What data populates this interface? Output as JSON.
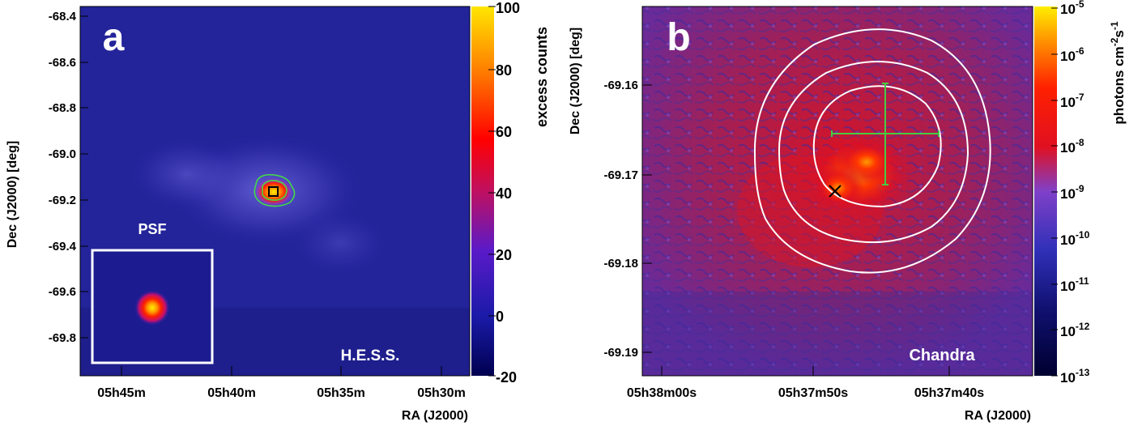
{
  "chart_data": [
    {
      "panel": "a",
      "type": "heatmap",
      "xlabel": "RA (J2000)",
      "ylabel": "Dec (J2000) [deg]",
      "x_ticks": [
        "05h45m",
        "05h40m",
        "05h35m",
        "05h30m"
      ],
      "y_ticks": [
        "-68.4",
        "-68.6",
        "-68.8",
        "-69.0",
        "-69.2",
        "-69.4",
        "-69.6",
        "-69.8"
      ],
      "y_tick_values": [
        -68.4,
        -68.6,
        -68.8,
        -69.0,
        -69.2,
        -69.4,
        -69.6,
        -69.8
      ],
      "colorbar": {
        "label": "excess counts",
        "ticks": [
          "100",
          "80",
          "60",
          "40",
          "20",
          "0",
          "-20"
        ],
        "range": [
          -20,
          100
        ],
        "colormap": "rainbow (navy → purple → red → orange → yellow)"
      },
      "annotations": {
        "panel_letter": "a",
        "psf_label": "PSF",
        "instrument": "H.E.S.S."
      },
      "source": {
        "dec": -69.17,
        "peak_counts": 100,
        "marker": "square"
      },
      "contours": {
        "color": "#44dd44",
        "count": 2
      }
    },
    {
      "panel": "b",
      "type": "heatmap",
      "xlabel": "RA (J2000)",
      "ylabel": "Dec (J2000) [deg]",
      "x_ticks": [
        "05h38m00s",
        "05h37m50s",
        "05h37m40s"
      ],
      "y_ticks": [
        "-69.16",
        "-69.17",
        "-69.18",
        "-69.19"
      ],
      "y_tick_values": [
        -69.16,
        -69.17,
        -69.18,
        -69.19
      ],
      "colorbar": {
        "label_main": "photons cm",
        "label_exp1": "-2",
        "label_mid": "s",
        "label_exp2": "-1",
        "log_scale": true,
        "tick_base": "10",
        "tick_exponents": [
          "-5",
          "-6",
          "-7",
          "-8",
          "-9",
          "-10",
          "-11",
          "-12",
          "-13"
        ],
        "range": [
          "1e-13",
          "1e-5"
        ]
      },
      "annotations": {
        "panel_letter": "b",
        "instrument": "Chandra"
      },
      "hess_position": {
        "dec": -69.1665,
        "marker": "green cross with error bars"
      },
      "xray_source": {
        "dec": -69.172,
        "marker": "black x"
      },
      "contours": {
        "color": "#ffffff",
        "count": 3
      }
    }
  ]
}
